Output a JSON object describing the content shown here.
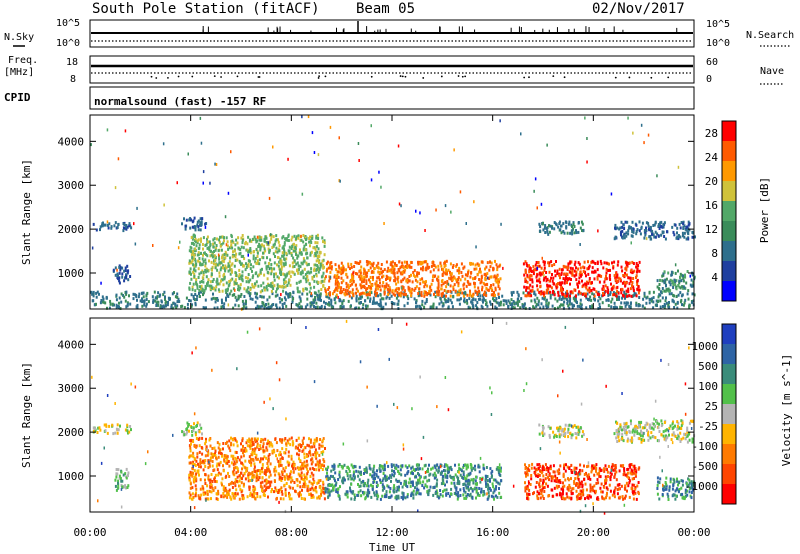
{
  "header": {
    "title": "South Pole Station (fitACF)",
    "beam": "Beam 05",
    "date": "02/Nov/2017"
  },
  "top_strip": {
    "nsky_label": "N.Sky",
    "nsearch_label": "N.Search",
    "noise_tick_hi": "10^5",
    "noise_tick_lo": "10^0",
    "freq_label": "Freq.",
    "freq_unit": "[MHz]",
    "freq_tick_hi": "18",
    "freq_tick_lo": "8",
    "nave_label": "Nave",
    "nave_tick_hi": "60",
    "nave_tick_lo": "0",
    "cpid_label": "CPID",
    "cpid_text": "normalsound (fast) -157 RF"
  },
  "colors": {
    "power_scale": [
      "#0000ff",
      "#1f3f9f",
      "#2e6f8c",
      "#3a8c5a",
      "#52a868",
      "#cfc23a",
      "#ff9900",
      "#ff5a00",
      "#ff0000"
    ],
    "velocity_scale": [
      "#1f3fbf",
      "#2e64a5",
      "#3a8c7a",
      "#52c04a",
      "#b4b4b4",
      "#ffb400",
      "#ff7a00",
      "#ff4500",
      "#ff0000"
    ]
  },
  "chart_data": [
    {
      "type": "heatmap",
      "panel": "power",
      "xlabel": "Time UT",
      "ylabel": "Slant Range [km]",
      "x_ticks": [
        "00:00",
        "04:00",
        "08:00",
        "12:00",
        "16:00",
        "20:00",
        "00:00"
      ],
      "x_range_hours": [
        0,
        24
      ],
      "y_ticks": [
        1000,
        2000,
        3000,
        4000
      ],
      "ylim": [
        180,
        4600
      ],
      "colorbar_label": "Power [dB]",
      "colorbar_ticks": [
        4,
        8,
        12,
        16,
        20,
        24,
        28
      ],
      "colorbar_range": [
        0,
        30
      ],
      "regions": [
        {
          "t0": 0.1,
          "t1": 1.6,
          "r0": 2000,
          "r1": 2200,
          "level": 3
        },
        {
          "t0": 0.9,
          "t1": 1.6,
          "r0": 800,
          "r1": 1200,
          "level": 2
        },
        {
          "t0": 0.0,
          "t1": 24,
          "r0": 220,
          "r1": 600,
          "level": 4
        },
        {
          "t0": 3.6,
          "t1": 4.6,
          "r0": 2000,
          "r1": 2300,
          "level": 3
        },
        {
          "t0": 3.9,
          "t1": 9.3,
          "r0": 600,
          "r1": 1900,
          "level": 7
        },
        {
          "t0": 9.3,
          "t1": 16.3,
          "r0": 500,
          "r1": 1300,
          "level": 11
        },
        {
          "t0": 17.2,
          "t1": 21.8,
          "r0": 500,
          "r1": 1300,
          "level": 13
        },
        {
          "t0": 17.8,
          "t1": 19.6,
          "r0": 1900,
          "r1": 2200,
          "level": 4
        },
        {
          "t0": 20.8,
          "t1": 24,
          "r0": 1800,
          "r1": 2200,
          "level": 3
        },
        {
          "t0": 22.5,
          "t1": 24,
          "r0": 600,
          "r1": 1100,
          "level": 5
        }
      ]
    },
    {
      "type": "heatmap",
      "panel": "velocity",
      "xlabel": "Time UT",
      "ylabel": "Slant Range [km]",
      "x_ticks": [
        "00:00",
        "04:00",
        "08:00",
        "12:00",
        "16:00",
        "20:00",
        "00:00"
      ],
      "x_range_hours": [
        0,
        24
      ],
      "y_ticks": [
        1000,
        2000,
        3000,
        4000
      ],
      "ylim": [
        180,
        4600
      ],
      "colorbar_label": "Velocity [m s^-1]",
      "colorbar_ticks": [
        "1000",
        "500",
        "100",
        "25",
        "-25",
        "-100",
        "-500",
        "-1000"
      ],
      "regions": [
        {
          "t0": 0.1,
          "t1": 1.6,
          "r0": 2000,
          "r1": 2200,
          "level": 4
        },
        {
          "t0": 0.9,
          "t1": 1.5,
          "r0": 700,
          "r1": 1200,
          "level": 3
        },
        {
          "t0": 3.6,
          "t1": 4.5,
          "r0": 1950,
          "r1": 2250,
          "level": 4
        },
        {
          "t0": 3.9,
          "t1": 9.3,
          "r0": 500,
          "r1": 1900,
          "level": 6
        },
        {
          "t0": 9.3,
          "t1": 16.3,
          "r0": 500,
          "r1": 1300,
          "level": 2
        },
        {
          "t0": 17.2,
          "t1": 21.8,
          "r0": 500,
          "r1": 1300,
          "level": 7
        },
        {
          "t0": 17.8,
          "t1": 19.6,
          "r0": 1900,
          "r1": 2200,
          "level": 4
        },
        {
          "t0": 20.8,
          "t1": 24,
          "r0": 1800,
          "r1": 2300,
          "level": 4
        },
        {
          "t0": 22.5,
          "t1": 24,
          "r0": 500,
          "r1": 1000,
          "level": 2
        }
      ]
    }
  ]
}
